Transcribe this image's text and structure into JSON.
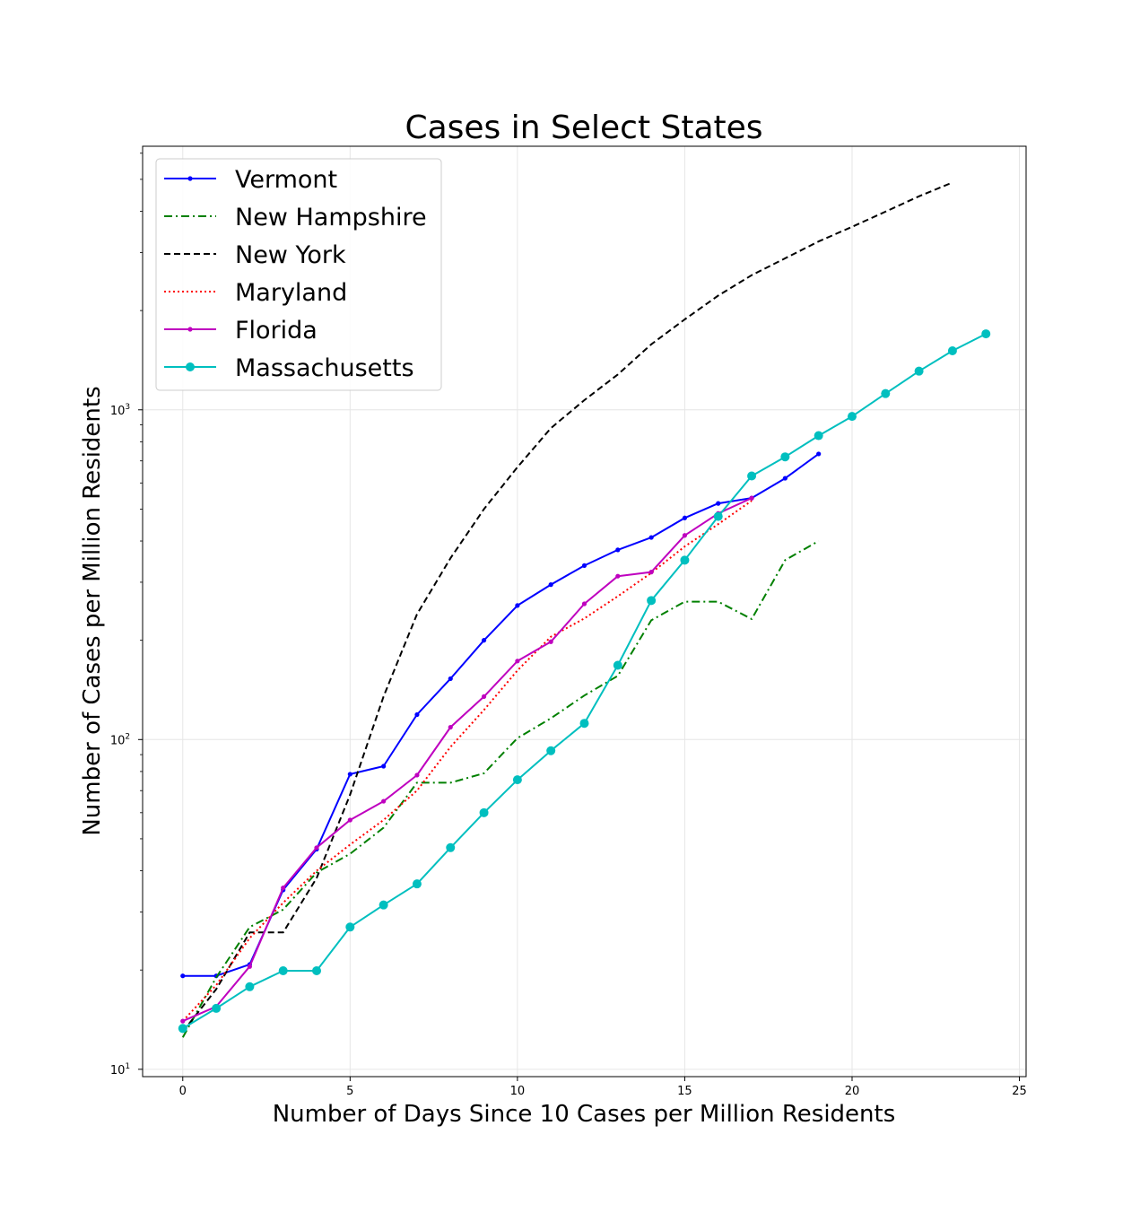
{
  "chart_data": {
    "type": "line",
    "title": "Cases in Select States",
    "xlabel": "Number of Days Since 10 Cases per Million Residents",
    "ylabel": "Number of Cases per Million Residents",
    "xlim": [
      -1.2,
      25.2
    ],
    "ylim": [
      9.5,
      6300
    ],
    "yscale": "log",
    "x_ticks": [
      0,
      5,
      10,
      15,
      20,
      25
    ],
    "x_tick_labels": [
      "0",
      "5",
      "10",
      "15",
      "20",
      "25"
    ],
    "y_ticks": [
      10,
      100,
      1000
    ],
    "y_tick_labels": [
      {
        "base": "10",
        "exp": "1"
      },
      {
        "base": "10",
        "exp": "2"
      },
      {
        "base": "10",
        "exp": "3"
      }
    ],
    "grid": true,
    "legend_position": "upper-left",
    "series": [
      {
        "name": "Vermont",
        "color": "#0000ff",
        "dash": "",
        "marker": "small-dot",
        "x": [
          0,
          1,
          2,
          3,
          4,
          5,
          6,
          7,
          8,
          9,
          10,
          11,
          12,
          13,
          14,
          15,
          16,
          17,
          18,
          19
        ],
        "values": [
          19.2,
          19.2,
          20.8,
          35,
          46.5,
          78.5,
          83,
          119,
          153,
          200,
          255,
          295,
          337,
          376,
          410,
          470,
          520,
          540,
          620,
          735
        ]
      },
      {
        "name": "New Hampshire",
        "color": "#008000",
        "dash": "dashdot",
        "marker": "none",
        "x": [
          0,
          1,
          2,
          3,
          4,
          5,
          6,
          7,
          8,
          9,
          10,
          11,
          12,
          13,
          14,
          15,
          16,
          17,
          18,
          19
        ],
        "values": [
          12.5,
          19,
          27,
          30.5,
          39.5,
          45,
          54,
          74,
          74,
          79,
          101,
          116,
          136,
          156,
          230,
          262,
          262,
          232,
          350,
          400
        ]
      },
      {
        "name": "New York",
        "color": "#000000",
        "dash": "dashed",
        "marker": "none",
        "x": [
          0,
          1,
          2,
          3,
          4,
          5,
          6,
          7,
          8,
          9,
          10,
          11,
          12,
          13,
          14,
          15,
          16,
          17,
          18,
          19,
          20,
          21,
          22,
          23
        ],
        "values": [
          13,
          17.5,
          26,
          26,
          38,
          68,
          135,
          240,
          355,
          500,
          670,
          880,
          1070,
          1280,
          1580,
          1880,
          2220,
          2560,
          2880,
          3240,
          3590,
          3990,
          4440,
          4890
        ]
      },
      {
        "name": "Maryland",
        "color": "#ff0000",
        "dash": "dotted",
        "marker": "none",
        "x": [
          0,
          1,
          2,
          3,
          4,
          5,
          6,
          7,
          8,
          9,
          10,
          11,
          12,
          13,
          14,
          15,
          16,
          17
        ],
        "values": [
          14,
          18,
          25,
          32,
          40,
          48,
          57,
          70,
          95,
          123,
          162,
          205,
          233,
          272,
          320,
          385,
          450,
          530
        ]
      },
      {
        "name": "Florida",
        "color": "#bf00bf",
        "dash": "",
        "marker": "small-dot",
        "x": [
          0,
          1,
          2,
          3,
          4,
          5,
          6,
          7,
          8,
          9,
          10,
          11,
          12,
          13,
          14,
          15,
          16,
          17
        ],
        "values": [
          14,
          15.5,
          20.5,
          35.5,
          47,
          57,
          65,
          78,
          109,
          135,
          173,
          198,
          258,
          313,
          322,
          416,
          485,
          540
        ]
      },
      {
        "name": "Massachusetts",
        "color": "#00bfbf",
        "dash": "",
        "marker": "large-dot",
        "x": [
          0,
          1,
          2,
          3,
          4,
          5,
          6,
          7,
          8,
          9,
          10,
          11,
          12,
          13,
          14,
          15,
          16,
          17,
          18,
          19,
          20,
          21,
          22,
          23,
          24
        ],
        "values": [
          13.3,
          15.3,
          17.8,
          19.9,
          19.9,
          27,
          31.5,
          36.5,
          47,
          60,
          75.5,
          92.5,
          112,
          168,
          264,
          350,
          475,
          630,
          720,
          835,
          955,
          1120,
          1310,
          1510,
          1700
        ]
      }
    ]
  }
}
